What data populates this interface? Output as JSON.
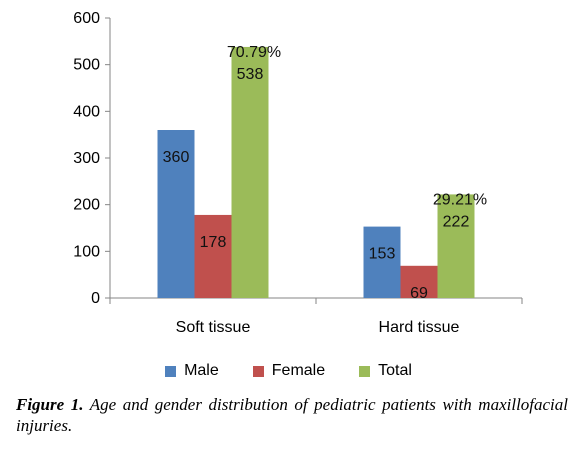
{
  "chart_data": {
    "type": "bar",
    "categories": [
      "Soft tissue",
      "Hard tissue"
    ],
    "series": [
      {
        "name": "Male",
        "values": [
          360,
          153
        ],
        "color": "#4f81bd"
      },
      {
        "name": "Female",
        "values": [
          178,
          69
        ],
        "color": "#c0504d"
      },
      {
        "name": "Total",
        "values": [
          538,
          222
        ],
        "color": "#9bbb59"
      }
    ],
    "percent_labels": [
      "70.79%",
      "29.21%"
    ],
    "ylim": [
      0,
      600
    ],
    "yticks": [
      0,
      100,
      200,
      300,
      400,
      500,
      600
    ],
    "grid": false,
    "legend_position": "bottom"
  },
  "caption": {
    "label": "Figure 1.",
    "text": "Age and gender distribution of pediatric patients with maxillofacial injuries."
  }
}
